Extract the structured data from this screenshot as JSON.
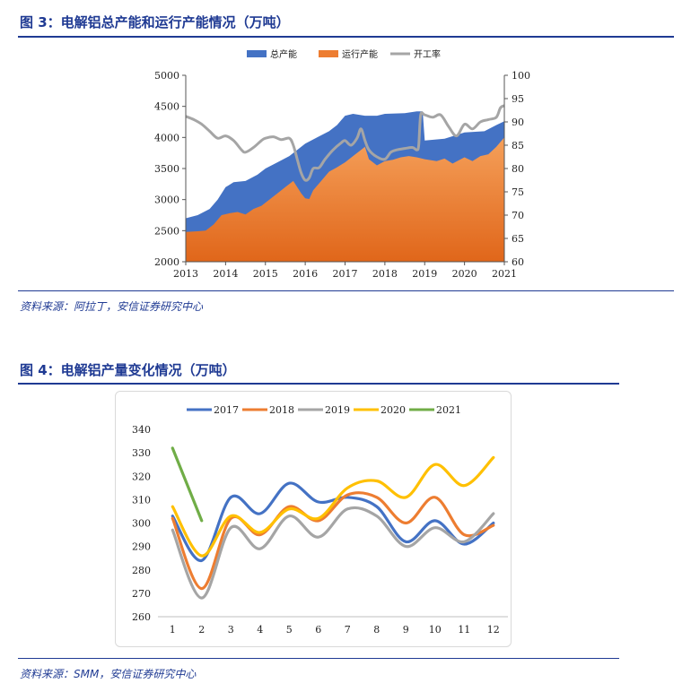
{
  "figure3": {
    "title": "图 3：电解铝总产能和运行产能情况（万吨）",
    "source": "资料来源：阿拉丁，安信证券研究中心"
  },
  "figure4": {
    "title": "图 4：电解铝产量变化情况（万吨）",
    "source": "资料来源：SMM，安信证券研究中心"
  },
  "colors": {
    "title_blue": "#1f3a93",
    "total_capacity": "#4472c4",
    "running_capacity": "#ed7d31",
    "operating_rate": "#a5a5a5",
    "y2017": "#4472c4",
    "y2018": "#ed7d31",
    "y2019": "#a5a5a5",
    "y2020": "#ffc000",
    "y2021": "#70ad47"
  },
  "chart_data": [
    {
      "type": "area",
      "title": "",
      "legend_position": "top",
      "x_ticks": [
        "2013",
        "2014",
        "2015",
        "2016",
        "2017",
        "2018",
        "2019",
        "2020",
        "2021"
      ],
      "xlim": [
        2013,
        2021
      ],
      "ylim": [
        2000,
        5000
      ],
      "y_ticks": [
        2000,
        2500,
        3000,
        3500,
        4000,
        4500,
        5000
      ],
      "y2lim": [
        60,
        100
      ],
      "y2_ticks": [
        60,
        65,
        70,
        75,
        80,
        85,
        90,
        95,
        100
      ],
      "series": [
        {
          "name": "总产能",
          "kind": "area",
          "axis": "left",
          "x": [
            2013.0,
            2013.3,
            2013.6,
            2013.8,
            2014.0,
            2014.2,
            2014.5,
            2014.8,
            2015.0,
            2015.3,
            2015.6,
            2015.8,
            2016.0,
            2016.3,
            2016.6,
            2016.8,
            2017.0,
            2017.2,
            2017.5,
            2017.8,
            2018.0,
            2018.5,
            2018.8,
            2018.95,
            2019.0,
            2019.5,
            2020.0,
            2020.5,
            2020.8,
            2021.0
          ],
          "values": [
            2700,
            2750,
            2850,
            3000,
            3200,
            3280,
            3300,
            3400,
            3500,
            3600,
            3700,
            3800,
            3900,
            4000,
            4100,
            4200,
            4350,
            4380,
            4350,
            4350,
            4380,
            4390,
            4420,
            4420,
            3950,
            3980,
            4080,
            4100,
            4200,
            4260
          ]
        },
        {
          "name": "运行产能",
          "kind": "area",
          "axis": "left",
          "x": [
            2013.0,
            2013.3,
            2013.5,
            2013.7,
            2013.9,
            2014.1,
            2014.3,
            2014.5,
            2014.7,
            2014.9,
            2015.0,
            2015.3,
            2015.5,
            2015.7,
            2015.8,
            2015.9,
            2016.0,
            2016.1,
            2016.2,
            2016.4,
            2016.6,
            2016.8,
            2017.0,
            2017.2,
            2017.4,
            2017.5,
            2017.6,
            2017.8,
            2018.0,
            2018.2,
            2018.4,
            2018.6,
            2018.8,
            2019.0,
            2019.3,
            2019.5,
            2019.7,
            2020.0,
            2020.2,
            2020.4,
            2020.6,
            2020.8,
            2021.0
          ],
          "values": [
            2480,
            2490,
            2500,
            2600,
            2750,
            2780,
            2800,
            2760,
            2850,
            2900,
            2950,
            3100,
            3200,
            3300,
            3200,
            3100,
            3020,
            3010,
            3150,
            3300,
            3450,
            3520,
            3600,
            3700,
            3800,
            3850,
            3650,
            3550,
            3620,
            3640,
            3680,
            3700,
            3680,
            3650,
            3620,
            3660,
            3580,
            3680,
            3620,
            3700,
            3730,
            3850,
            4000
          ]
        },
        {
          "name": "开工率",
          "kind": "line",
          "axis": "right",
          "x": [
            2013.0,
            2013.2,
            2013.4,
            2013.6,
            2013.8,
            2014.0,
            2014.2,
            2014.4,
            2014.5,
            2014.7,
            2014.9,
            2015.0,
            2015.2,
            2015.4,
            2015.6,
            2015.7,
            2015.8,
            2015.9,
            2016.0,
            2016.1,
            2016.2,
            2016.35,
            2016.5,
            2016.7,
            2016.9,
            2017.0,
            2017.15,
            2017.3,
            2017.4,
            2017.5,
            2017.6,
            2017.8,
            2018.0,
            2018.15,
            2018.3,
            2018.5,
            2018.7,
            2018.8,
            2018.85,
            2018.9,
            2019.0,
            2019.2,
            2019.4,
            2019.6,
            2019.8,
            2020.0,
            2020.2,
            2020.4,
            2020.6,
            2020.8,
            2020.9,
            2021.0
          ],
          "values": [
            91.2,
            90.5,
            89.5,
            88,
            86.5,
            87,
            86,
            84,
            83.5,
            84.5,
            86,
            86.5,
            86.8,
            86.2,
            86.5,
            85,
            82,
            79,
            77.5,
            78,
            80,
            80.2,
            82,
            84,
            85.5,
            86,
            85,
            86.5,
            88.5,
            86,
            84,
            82.5,
            82,
            83.5,
            84,
            84.3,
            84.5,
            84,
            85,
            91.5,
            91.5,
            91,
            91.5,
            89,
            87,
            89.5,
            88.5,
            90,
            90.5,
            91,
            93,
            93.5
          ]
        }
      ]
    },
    {
      "type": "line",
      "title": "",
      "legend_position": "top",
      "x_ticks": [
        1,
        2,
        3,
        4,
        5,
        6,
        7,
        8,
        9,
        10,
        11,
        12
      ],
      "ylim": [
        260,
        340
      ],
      "y_ticks": [
        260,
        270,
        280,
        290,
        300,
        310,
        320,
        330,
        340
      ],
      "series": [
        {
          "name": "2017",
          "values": [
            303,
            284,
            311,
            304,
            317,
            309,
            311,
            307,
            292,
            301,
            291,
            300
          ]
        },
        {
          "name": "2018",
          "values": [
            302,
            272,
            302,
            295,
            307,
            301,
            312,
            311,
            300,
            311,
            295,
            299
          ]
        },
        {
          "name": "2019",
          "values": [
            297,
            268,
            298,
            289,
            303,
            294,
            306,
            303,
            290,
            298,
            292,
            304
          ]
        },
        {
          "name": "2020",
          "values": [
            307,
            286,
            303,
            296,
            306,
            302,
            315,
            318,
            311,
            325,
            316,
            328
          ]
        },
        {
          "name": "2021",
          "values": [
            332,
            301
          ]
        }
      ]
    }
  ]
}
